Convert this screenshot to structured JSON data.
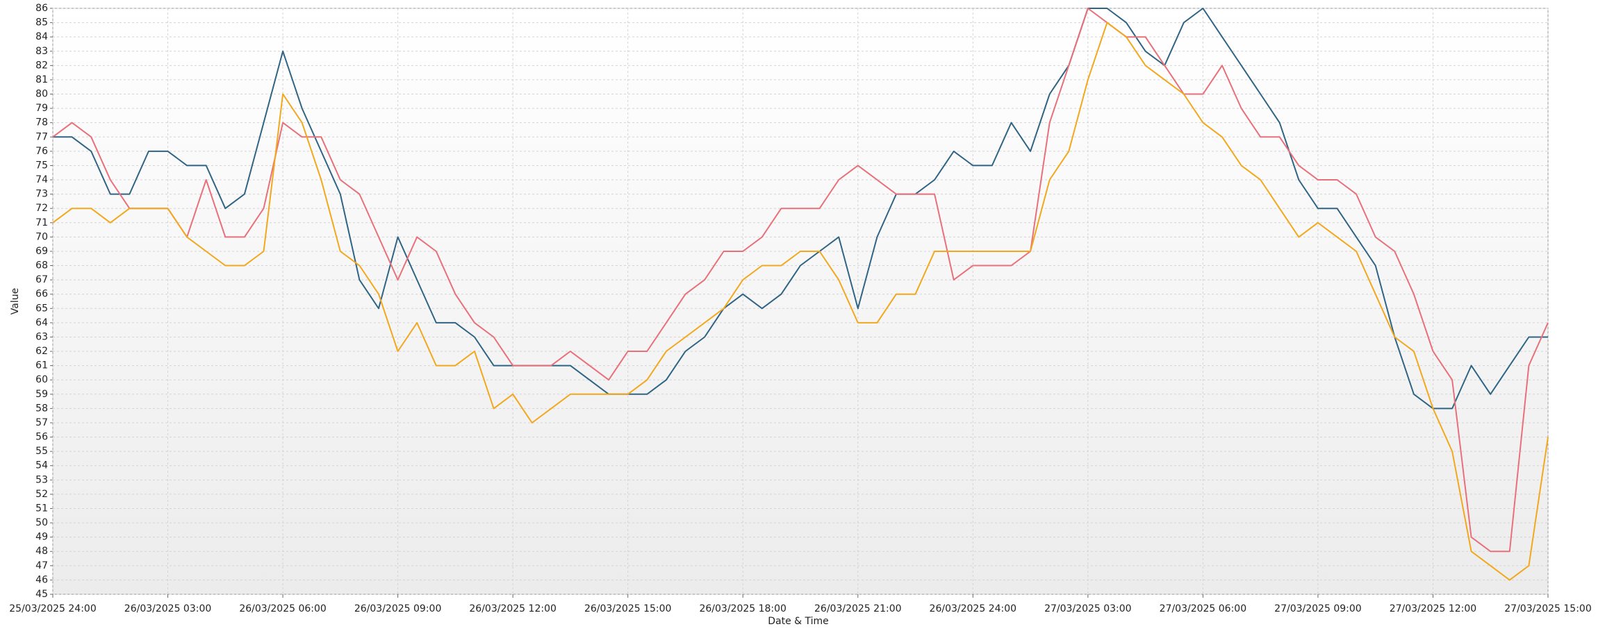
{
  "chart_data": {
    "type": "line",
    "x_label": "Date & Time",
    "y_label": "Value",
    "x": [
      "2025-03-26T00:00",
      "2025-03-26T00:30",
      "2025-03-26T01:00",
      "2025-03-26T01:30",
      "2025-03-26T02:00",
      "2025-03-26T02:30",
      "2025-03-26T03:00",
      "2025-03-26T03:30",
      "2025-03-26T04:00",
      "2025-03-26T04:30",
      "2025-03-26T05:00",
      "2025-03-26T05:30",
      "2025-03-26T06:00",
      "2025-03-26T06:30",
      "2025-03-26T07:00",
      "2025-03-26T07:30",
      "2025-03-26T08:00",
      "2025-03-26T08:30",
      "2025-03-26T09:00",
      "2025-03-26T09:30",
      "2025-03-26T10:00",
      "2025-03-26T10:30",
      "2025-03-26T11:00",
      "2025-03-26T11:30",
      "2025-03-26T12:00",
      "2025-03-26T12:30",
      "2025-03-26T13:00",
      "2025-03-26T13:30",
      "2025-03-26T14:00",
      "2025-03-26T14:30",
      "2025-03-26T15:00",
      "2025-03-26T15:30",
      "2025-03-26T16:00",
      "2025-03-26T16:30",
      "2025-03-26T17:00",
      "2025-03-26T17:30",
      "2025-03-26T18:00",
      "2025-03-26T18:30",
      "2025-03-26T19:00",
      "2025-03-26T19:30",
      "2025-03-26T20:00",
      "2025-03-26T20:30",
      "2025-03-26T21:00",
      "2025-03-26T21:30",
      "2025-03-26T22:00",
      "2025-03-26T22:30",
      "2025-03-26T23:00",
      "2025-03-26T23:30",
      "2025-03-27T00:00",
      "2025-03-27T00:30",
      "2025-03-27T01:00",
      "2025-03-27T01:30",
      "2025-03-27T02:00",
      "2025-03-27T02:30",
      "2025-03-27T03:00",
      "2025-03-27T03:30",
      "2025-03-27T04:00",
      "2025-03-27T04:30",
      "2025-03-27T05:00",
      "2025-03-27T05:30",
      "2025-03-27T06:00",
      "2025-03-27T06:30",
      "2025-03-27T07:00",
      "2025-03-27T07:30",
      "2025-03-27T08:00",
      "2025-03-27T08:30",
      "2025-03-27T09:00",
      "2025-03-27T09:30",
      "2025-03-27T10:00",
      "2025-03-27T10:30",
      "2025-03-27T11:00",
      "2025-03-27T11:30",
      "2025-03-27T12:00",
      "2025-03-27T12:30",
      "2025-03-27T13:00",
      "2025-03-27T13:30",
      "2025-03-27T14:00",
      "2025-03-27T14:30",
      "2025-03-27T15:00"
    ],
    "series": [
      {
        "color": "#2f6485",
        "values": [
          77,
          77,
          76,
          73,
          73,
          76,
          76,
          75,
          75,
          72,
          73,
          78,
          83,
          79,
          76,
          73,
          67,
          65,
          70,
          67,
          64,
          64,
          63,
          61,
          61,
          61,
          61,
          61,
          60,
          59,
          59,
          59,
          60,
          62,
          63,
          65,
          66,
          65,
          66,
          68,
          69,
          70,
          65,
          70,
          73,
          73,
          74,
          76,
          75,
          75,
          78,
          76,
          80,
          82,
          86,
          86,
          85,
          83,
          82,
          85,
          86,
          84,
          82,
          80,
          78,
          74,
          72,
          72,
          70,
          68,
          63,
          59,
          58,
          58,
          61,
          59,
          61,
          63,
          63
        ]
      },
      {
        "color": "#e8707a",
        "values": [
          77,
          78,
          77,
          74,
          72,
          72,
          72,
          70,
          74,
          70,
          70,
          72,
          78,
          77,
          77,
          74,
          73,
          70,
          67,
          70,
          69,
          66,
          64,
          63,
          61,
          61,
          61,
          62,
          61,
          60,
          62,
          62,
          64,
          66,
          67,
          69,
          69,
          70,
          72,
          72,
          72,
          74,
          75,
          74,
          73,
          73,
          73,
          67,
          68,
          68,
          68,
          69,
          78,
          82,
          86,
          85,
          84,
          84,
          82,
          80,
          80,
          82,
          79,
          77,
          77,
          75,
          74,
          74,
          73,
          70,
          69,
          66,
          62,
          60,
          49,
          48,
          48,
          61,
          64
        ]
      },
      {
        "color": "#f2a81d",
        "values": [
          71,
          72,
          72,
          71,
          72,
          72,
          72,
          70,
          69,
          68,
          68,
          69,
          80,
          78,
          74,
          69,
          68,
          66,
          62,
          64,
          61,
          61,
          62,
          58,
          59,
          57,
          58,
          59,
          59,
          59,
          59,
          60,
          62,
          63,
          64,
          65,
          67,
          68,
          68,
          69,
          69,
          67,
          64,
          64,
          66,
          66,
          69,
          69,
          69,
          69,
          69,
          69,
          74,
          76,
          81,
          85,
          84,
          82,
          81,
          80,
          78,
          77,
          75,
          74,
          72,
          70,
          71,
          70,
          69,
          66,
          63,
          62,
          58,
          55,
          48,
          47,
          46,
          47,
          56
        ]
      }
    ],
    "xlim": [
      "2025-03-26T00:00",
      "2025-03-27T15:00"
    ],
    "xticks": [
      {
        "value": "2025-03-26T00:00",
        "label": "25/03/2025 24:00"
      },
      {
        "value": "2025-03-26T03:00",
        "label": "26/03/2025 03:00"
      },
      {
        "value": "2025-03-26T06:00",
        "label": "26/03/2025 06:00"
      },
      {
        "value": "2025-03-26T09:00",
        "label": "26/03/2025 09:00"
      },
      {
        "value": "2025-03-26T12:00",
        "label": "26/03/2025 12:00"
      },
      {
        "value": "2025-03-26T15:00",
        "label": "26/03/2025 15:00"
      },
      {
        "value": "2025-03-26T18:00",
        "label": "26/03/2025 18:00"
      },
      {
        "value": "2025-03-26T21:00",
        "label": "26/03/2025 21:00"
      },
      {
        "value": "2025-03-27T00:00",
        "label": "26/03/2025 24:00"
      },
      {
        "value": "2025-03-27T03:00",
        "label": "27/03/2025 03:00"
      },
      {
        "value": "2025-03-27T06:00",
        "label": "27/03/2025 06:00"
      },
      {
        "value": "2025-03-27T09:00",
        "label": "27/03/2025 09:00"
      },
      {
        "value": "2025-03-27T12:00",
        "label": "27/03/2025 12:00"
      },
      {
        "value": "2025-03-27T15:00",
        "label": "27/03/2025 15:00"
      }
    ],
    "ylim": [
      45,
      86
    ],
    "yticks": [
      45,
      46,
      47,
      48,
      49,
      50,
      51,
      52,
      53,
      54,
      55,
      56,
      57,
      58,
      59,
      60,
      61,
      62,
      63,
      64,
      65,
      66,
      67,
      68,
      69,
      70,
      71,
      72,
      73,
      74,
      75,
      76,
      77,
      78,
      79,
      80,
      81,
      82,
      83,
      84,
      85,
      86
    ],
    "grid": true
  }
}
